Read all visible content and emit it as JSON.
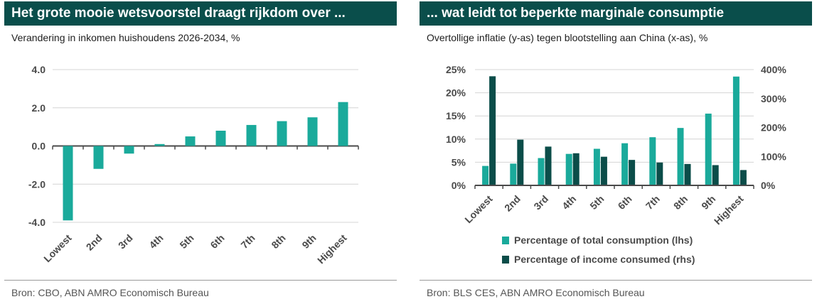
{
  "colors": {
    "banner": "#0a4e4b",
    "teal": "#1aaa9b",
    "dark": "#0b4d49",
    "grid": "#d4d4d4",
    "axis": "#4a4a4a"
  },
  "left": {
    "title": "Het grote mooie wetsvoorstel draagt rijkdom over ...",
    "subtitle": "Verandering in inkomen huishoudens 2026-2034, %",
    "source": "Bron: CBO, ABN AMRO  Economisch Bureau"
  },
  "right": {
    "title": "... wat leidt tot beperkte marginale consumptie",
    "subtitle": "Overtollige inflatie (y-as) tegen blootstelling aan China (x-as), %",
    "source": "Bron: BLS CES, ABN AMRO  Economisch Bureau"
  },
  "chart_data": [
    {
      "type": "bar",
      "categories": [
        "Lowest",
        "2nd",
        "3rd",
        "4th",
        "5th",
        "6th",
        "7th",
        "8th",
        "9th",
        "Highest"
      ],
      "values": [
        -3.9,
        -1.2,
        -0.4,
        0.1,
        0.5,
        0.8,
        1.1,
        1.3,
        1.5,
        2.3
      ],
      "ylim": [
        -4.0,
        4.0
      ],
      "yticks": [
        4.0,
        2.0,
        0.0,
        -2.0,
        -4.0
      ],
      "ytick_labels": [
        "4.0",
        "2.0",
        "0.0",
        "-2.0",
        "-4.0"
      ],
      "grid": true,
      "color": "#1aaa9b"
    },
    {
      "type": "bar",
      "categories": [
        "Lowest",
        "2nd",
        "3rd",
        "4th",
        "5th",
        "6th",
        "7th",
        "8th",
        "9th",
        "Highest"
      ],
      "series": [
        {
          "name": "Percentage of total consumption (lhs)",
          "axis": "left",
          "color": "#1aaa9b",
          "values": [
            4.2,
            4.7,
            5.9,
            6.8,
            7.9,
            9.1,
            10.4,
            12.4,
            15.5,
            23.5
          ]
        },
        {
          "name": "Percentage of income consumed (rhs)",
          "axis": "right",
          "color": "#0b4d49",
          "values": [
            377,
            158,
            134,
            111,
            99,
            88,
            79,
            74,
            70,
            53
          ]
        }
      ],
      "ylim_left": [
        0,
        25
      ],
      "yticks_left": [
        0,
        5,
        10,
        15,
        20,
        25
      ],
      "ytick_labels_left": [
        "0%",
        "5%",
        "10%",
        "15%",
        "20%",
        "25%"
      ],
      "ylim_right": [
        0,
        400
      ],
      "yticks_right": [
        0,
        100,
        200,
        300,
        400
      ],
      "ytick_labels_right": [
        "0%",
        "100%",
        "200%",
        "300%",
        "400%"
      ],
      "grid": true,
      "legend_position": "bottom"
    }
  ]
}
